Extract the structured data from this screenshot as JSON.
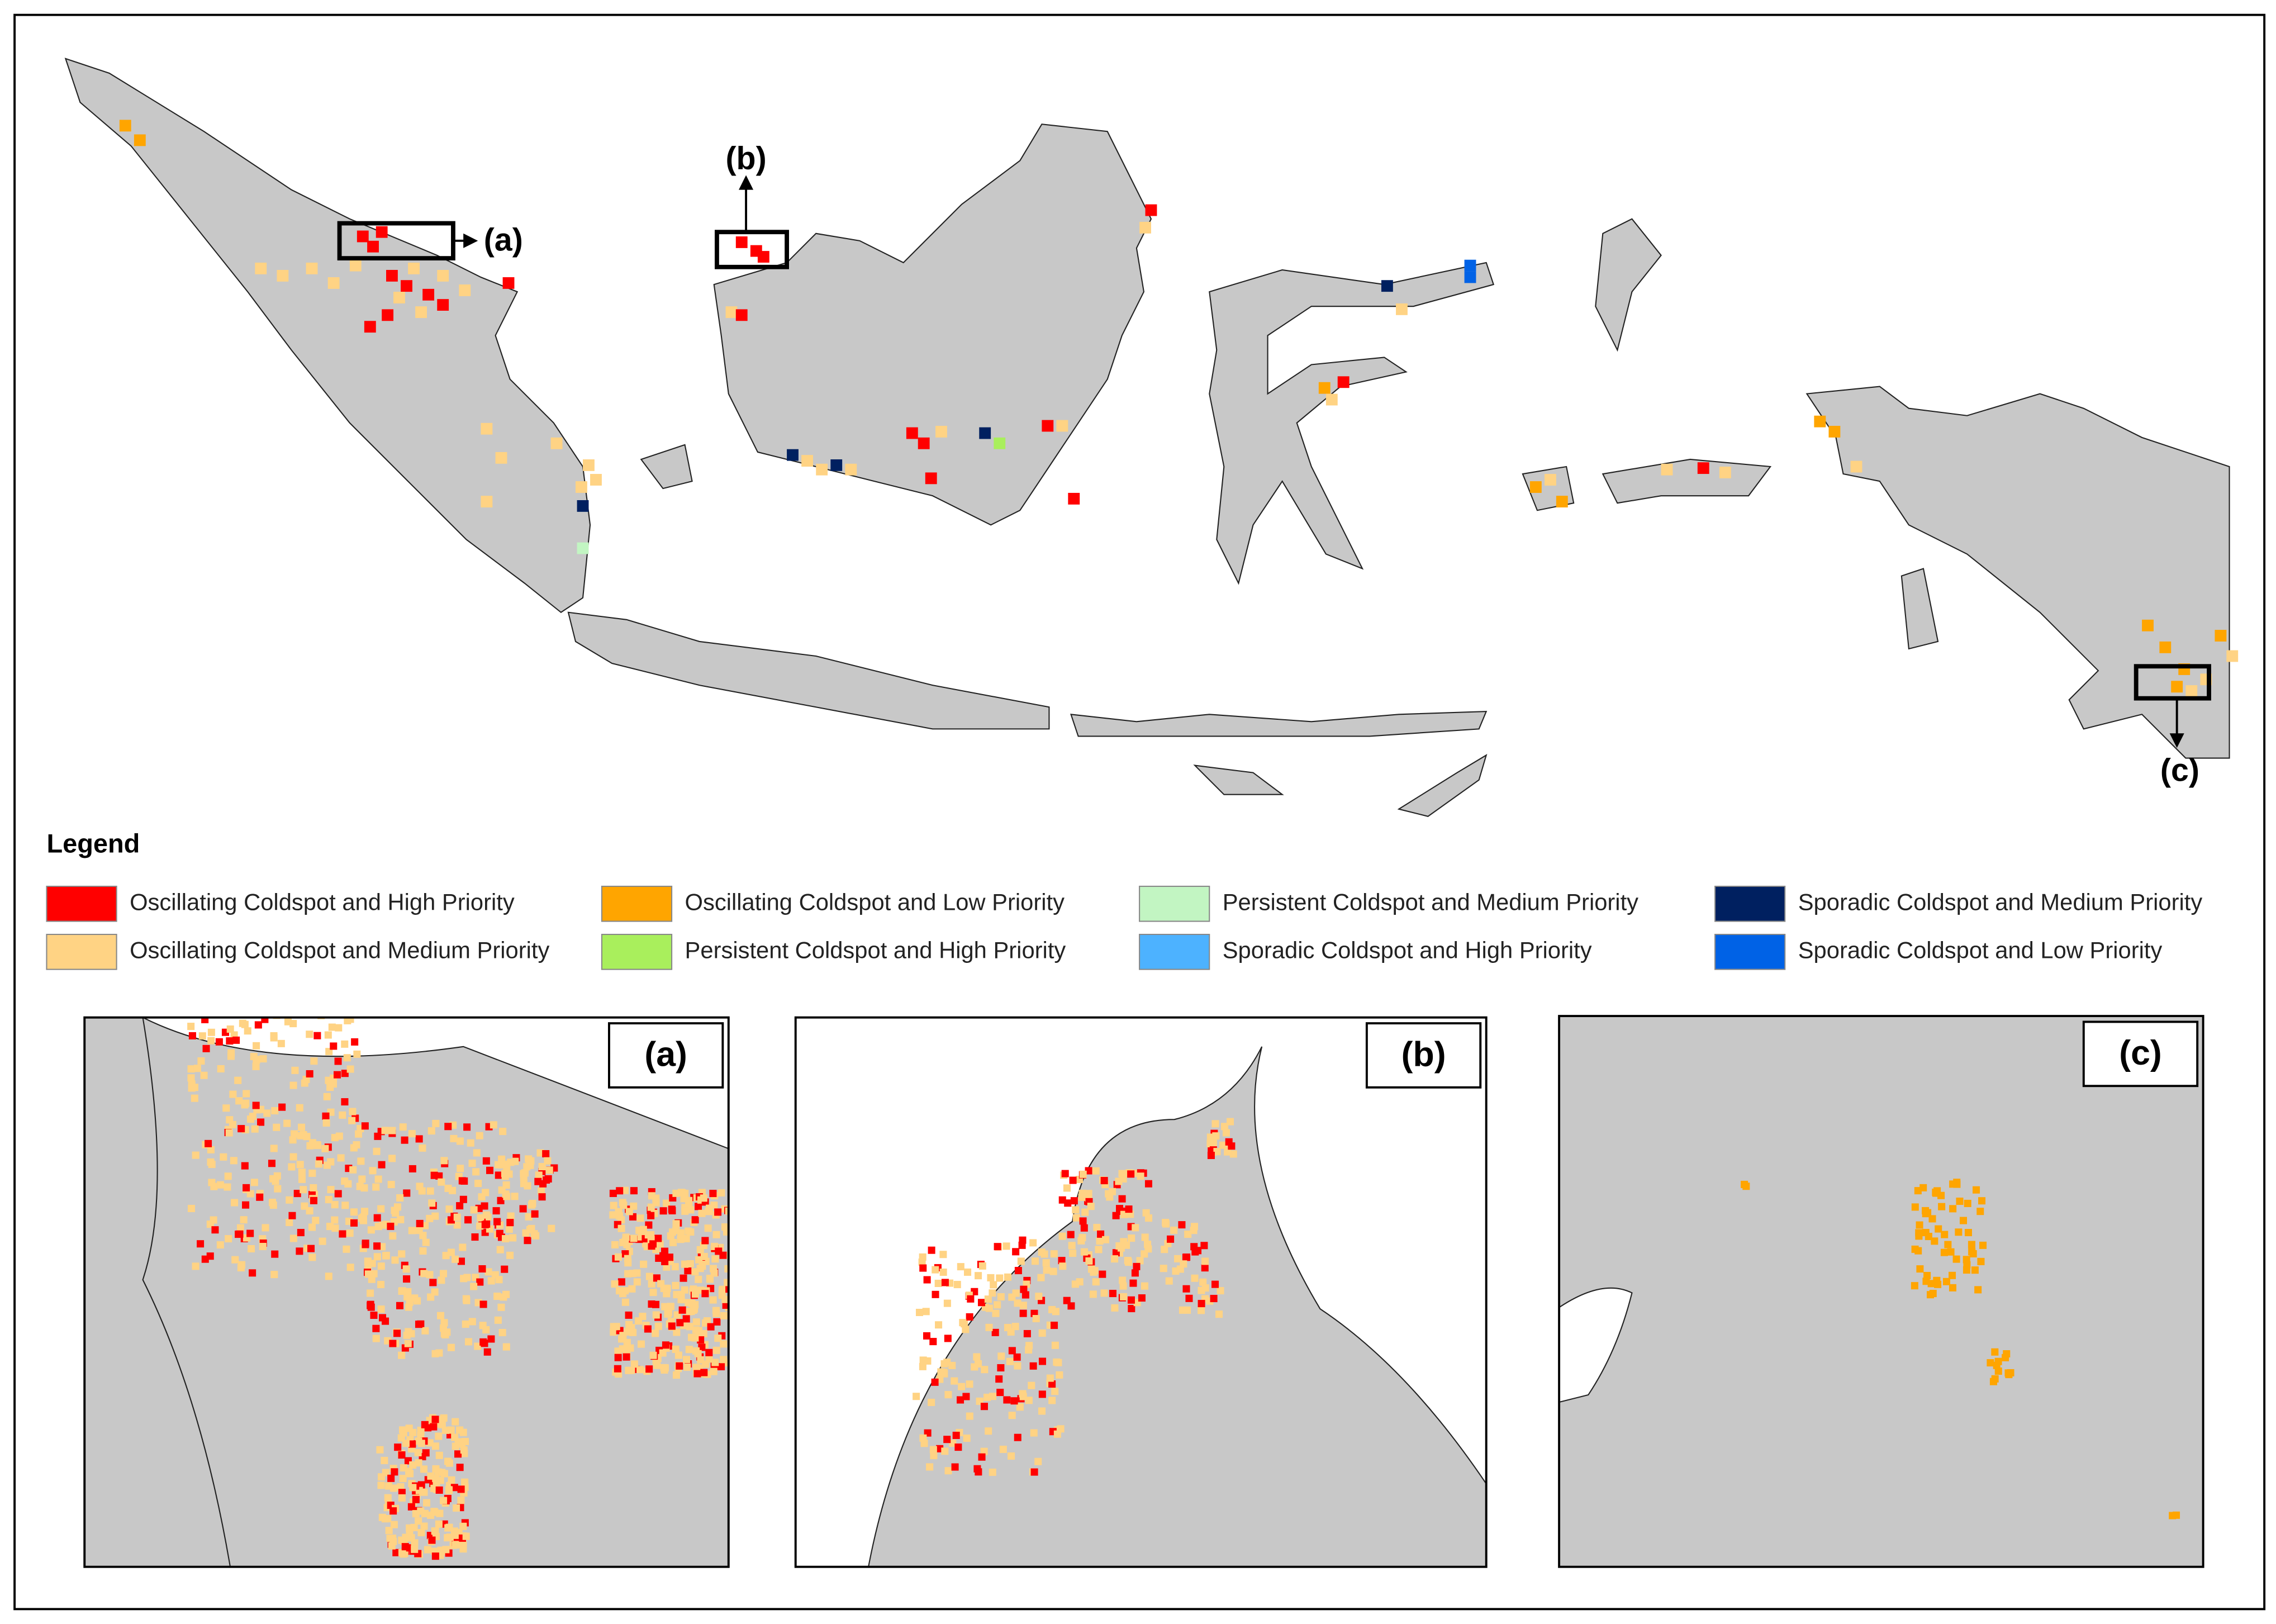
{
  "map": {
    "labels": {
      "a": "(a)",
      "b": "(b)",
      "c": "(c)"
    },
    "legend": {
      "title": "Legend",
      "items": [
        {
          "name": "Oscillating Coldspot and High Priority",
          "color": "#ff0000"
        },
        {
          "name": "Oscillating Coldspot and Low Priority",
          "color": "#ffa500"
        },
        {
          "name": "Persistent Coldspot and Medium Priority",
          "color": "#c2f5c2"
        },
        {
          "name": "Sporadic Coldspot and Medium Priority",
          "color": "#002060"
        },
        {
          "name": "Oscillating Coldspot and Medium Priority",
          "color": "#ffd384"
        },
        {
          "name": "Persistent Coldspot and High Priority",
          "color": "#a9ef5c"
        },
        {
          "name": "Sporadic Coldspot and High Priority",
          "color": "#4db2ff"
        },
        {
          "name": "Sporadic Coldspot and Low Priority",
          "color": "#0062e6"
        }
      ]
    },
    "insets": [
      {
        "label": "(a)"
      },
      {
        "label": "(b)"
      },
      {
        "label": "(c)"
      }
    ]
  }
}
